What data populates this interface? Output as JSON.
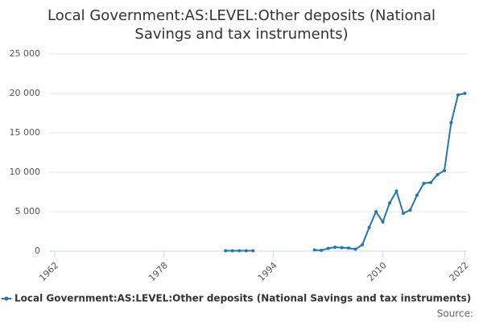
{
  "chart_data": {
    "type": "line",
    "title": "Local Government:AS:LEVEL:Other deposits (National Savings and tax instruments)",
    "x": [
      1987,
      1988,
      1989,
      1990,
      1991,
      1992,
      1993,
      1994,
      1995,
      1996,
      1997,
      1998,
      1999,
      2000,
      2001,
      2002,
      2003,
      2004,
      2005,
      2006,
      2007,
      2008,
      2009,
      2010,
      2011,
      2012,
      2013,
      2014,
      2015,
      2016,
      2017,
      2018,
      2019,
      2020,
      2021,
      2022
    ],
    "series": [
      {
        "name": "Local Government:AS:LEVEL:Other deposits (National Savings and tax instruments)",
        "color": "#2577b3",
        "values": [
          50,
          50,
          50,
          50,
          50,
          null,
          null,
          null,
          null,
          null,
          null,
          null,
          null,
          150,
          100,
          350,
          500,
          450,
          400,
          250,
          800,
          3000,
          5000,
          3700,
          6100,
          7600,
          4800,
          5200,
          7100,
          8600,
          8700,
          9700,
          10200,
          16300,
          19800,
          20000
        ]
      }
    ],
    "xlim": [
      1961.3,
      2022.3
    ],
    "xticks": [
      1962,
      1978,
      1994,
      2010,
      2022
    ],
    "ylim": [
      0,
      25000
    ],
    "yticks": [
      0,
      {
        "value": 5000,
        "label": "5 000"
      },
      {
        "value": 10000,
        "label": "10 000"
      },
      {
        "value": 15000,
        "label": "15 000"
      },
      {
        "value": 20000,
        "label": "20 000"
      },
      {
        "value": 25000,
        "label": "25 000"
      }
    ],
    "grid": true,
    "source_label": "Source:"
  }
}
